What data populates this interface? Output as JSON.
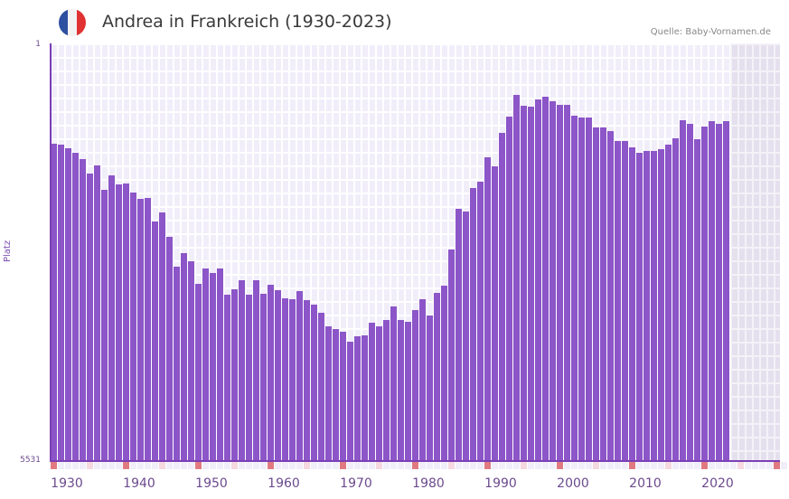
{
  "header": {
    "title": "Andrea in Frankreich (1930-2023)",
    "source": "Quelle: Baby-Vornamen.de",
    "flag_colors": [
      "#2f4fa1",
      "#f3f3f3",
      "#e03232"
    ]
  },
  "colors": {
    "bar": "#8c55c8",
    "axis": "#7b3fb5",
    "tick_major": "#e07a80"
  },
  "chart_data": {
    "type": "bar",
    "title": "Andrea in Frankreich (1930-2023)",
    "xlabel": "",
    "ylabel": "Platz",
    "y_inverted": true,
    "ylim": [
      1,
      5531
    ],
    "y_ticks": [
      "1",
      "5531"
    ],
    "x_ticks": [
      "1930",
      "1940",
      "1950",
      "1960",
      "1970",
      "1980",
      "1990",
      "2000",
      "2010",
      "2020"
    ],
    "x_range_years": [
      1930,
      2030
    ],
    "grid": true,
    "legend": null,
    "categories": [
      1930,
      1931,
      1932,
      1933,
      1934,
      1935,
      1936,
      1937,
      1938,
      1939,
      1940,
      1941,
      1942,
      1943,
      1944,
      1945,
      1946,
      1947,
      1948,
      1949,
      1950,
      1951,
      1952,
      1953,
      1954,
      1955,
      1956,
      1957,
      1958,
      1959,
      1960,
      1961,
      1962,
      1963,
      1964,
      1965,
      1966,
      1967,
      1968,
      1969,
      1970,
      1971,
      1972,
      1973,
      1974,
      1975,
      1976,
      1977,
      1978,
      1979,
      1980,
      1981,
      1982,
      1983,
      1984,
      1985,
      1986,
      1987,
      1988,
      1989,
      1990,
      1991,
      1992,
      1993,
      1994,
      1995,
      1996,
      1997,
      1998,
      1999,
      2000,
      2001,
      2002,
      2003,
      2004,
      2005,
      2006,
      2007,
      2008,
      2009,
      2010,
      2011,
      2012,
      2013,
      2014,
      2015,
      2016,
      2017,
      2018,
      2019,
      2020,
      2021,
      2022,
      2023
    ],
    "values": [
      1324,
      1336,
      1384,
      1444,
      1528,
      1720,
      1612,
      1937,
      1745,
      1865,
      1853,
      1973,
      2057,
      2045,
      2358,
      2238,
      2562,
      2959,
      2779,
      2887,
      3188,
      2983,
      3043,
      2983,
      3332,
      3260,
      3139,
      3332,
      3139,
      3320,
      3200,
      3272,
      3380,
      3392,
      3284,
      3404,
      3464,
      3572,
      3752,
      3788,
      3824,
      3945,
      3884,
      3872,
      3704,
      3752,
      3668,
      3488,
      3668,
      3692,
      3536,
      3392,
      3608,
      3308,
      3211,
      2730,
      2189,
      2225,
      1913,
      1829,
      1504,
      1624,
      1191,
      975,
      686,
      830,
      842,
      746,
      710,
      770,
      818,
      818,
      963,
      987,
      987,
      1119,
      1119,
      1167,
      1299,
      1299,
      1371,
      1444,
      1420,
      1420,
      1396,
      1336,
      1263,
      1023,
      1071,
      1275,
      1107,
      1035,
      1071,
      1035
    ]
  }
}
